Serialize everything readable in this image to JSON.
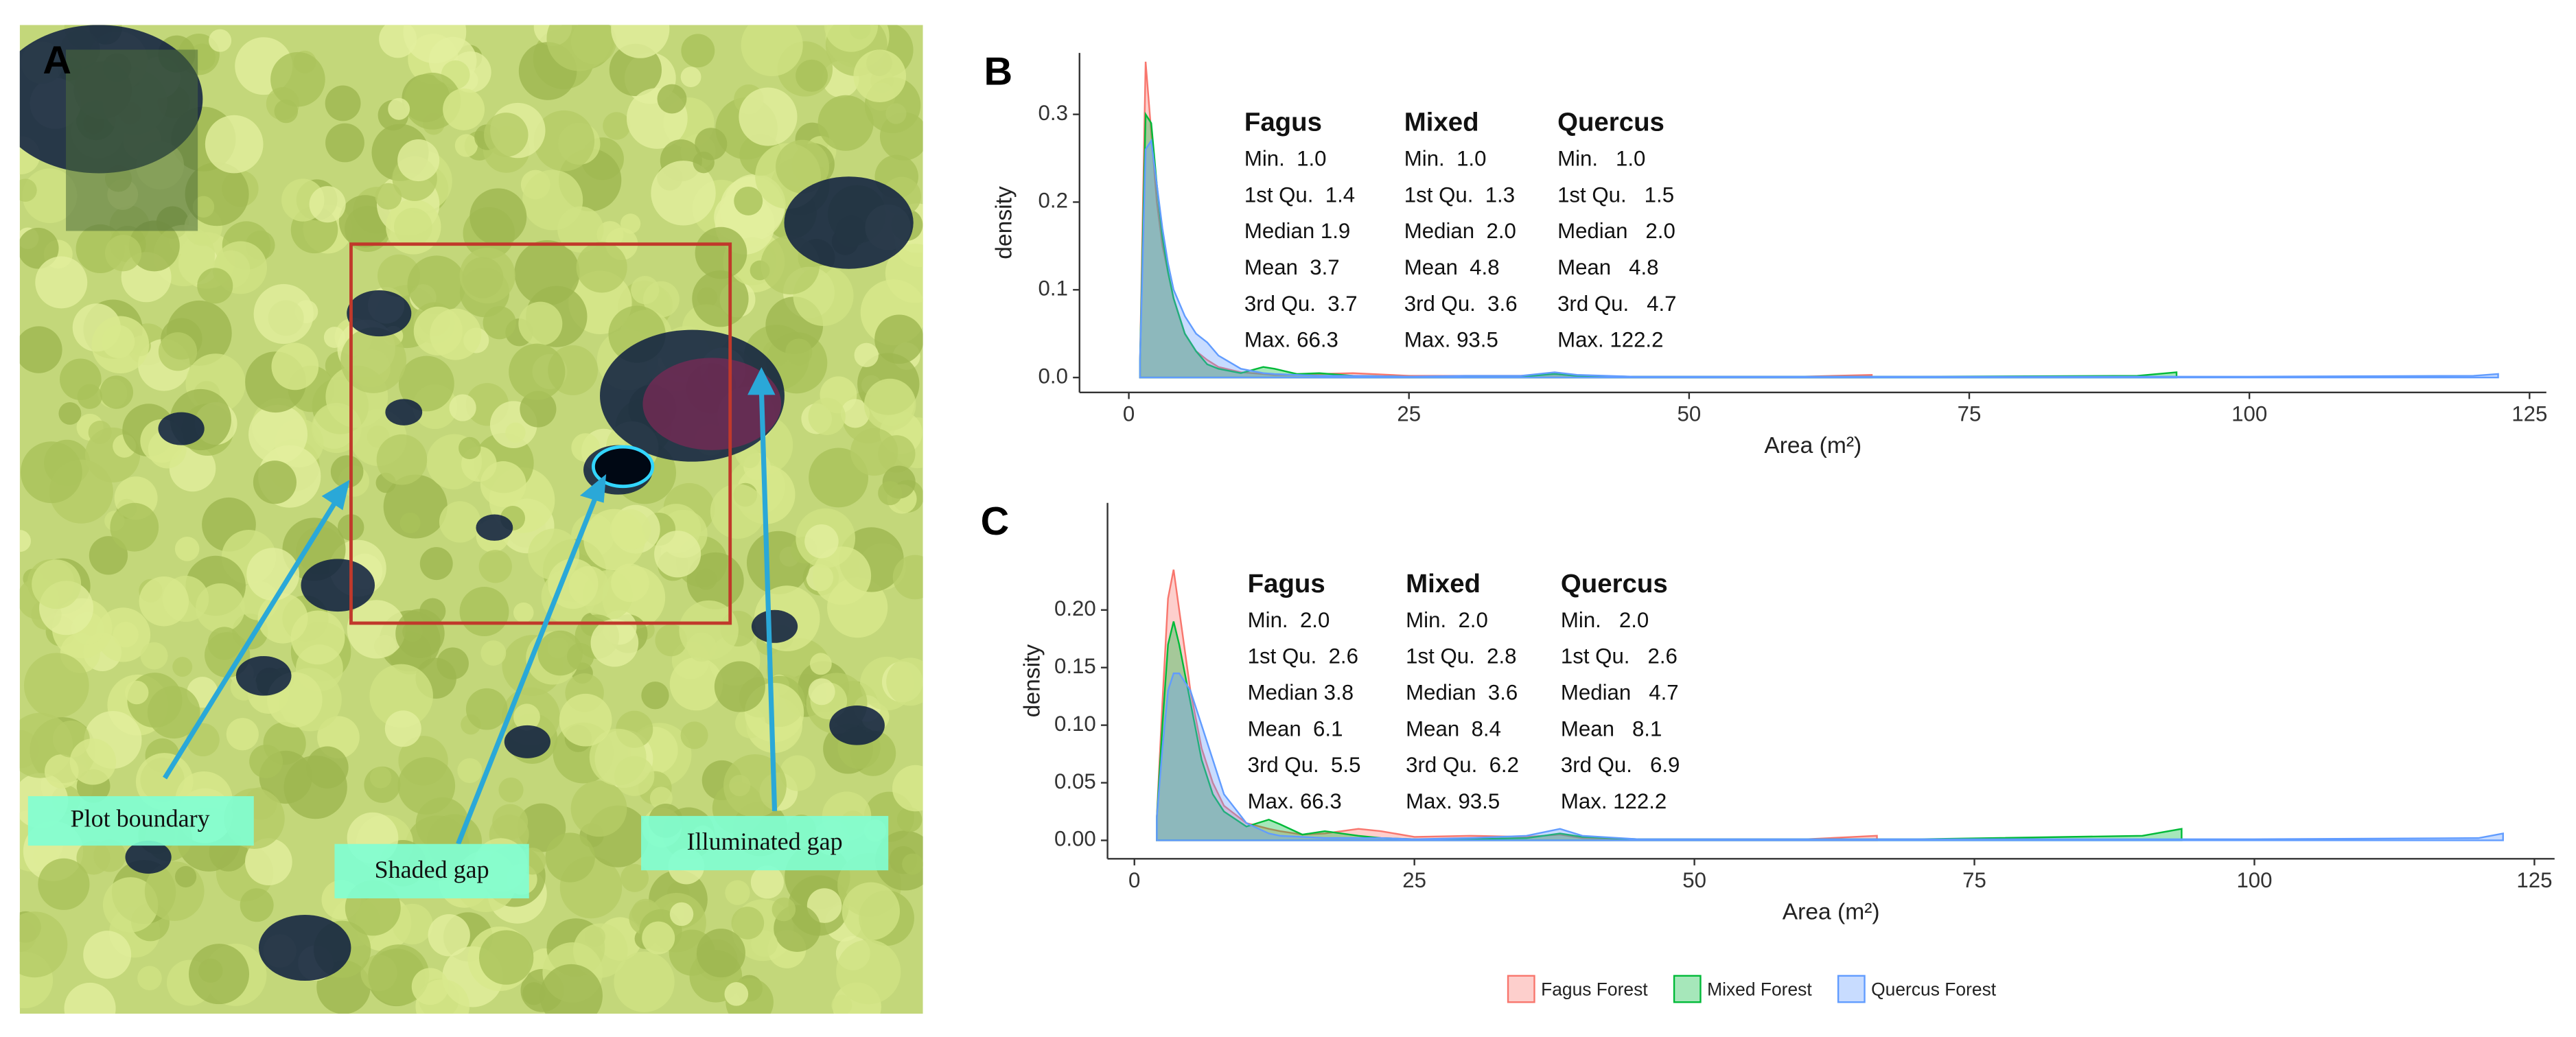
{
  "panel_a": {
    "label": "A",
    "annotations": [
      "Plot boundary",
      "Shaded gap",
      "Illuminated gap"
    ]
  },
  "legend_position": "bottom",
  "chart_data": [
    {
      "type": "area",
      "panel": "B",
      "xlabel": "Area (m²)",
      "ylabel": "density",
      "xlim": [
        -4.4,
        126.5
      ],
      "ylim": [
        -0.017,
        0.37
      ],
      "xticks": [
        0,
        25,
        50,
        75,
        100,
        125
      ],
      "yticks": [
        {
          "value": 0,
          "label": "0.0"
        },
        {
          "value": 0.1,
          "label": "0.1"
        },
        {
          "value": 0.2,
          "label": "0.2"
        },
        {
          "value": 0.3,
          "label": "0.3"
        }
      ],
      "x": [
        1,
        1.5,
        2,
        2.5,
        3,
        3.5,
        4,
        5,
        6,
        7,
        8,
        10,
        12,
        13,
        15,
        17,
        20,
        25,
        30,
        35,
        38,
        40,
        45,
        60,
        66.3,
        70,
        90,
        93.5,
        95,
        100,
        120,
        122.2
      ],
      "series": [
        {
          "name": "Fagus Forest",
          "color": "#f8766d",
          "values": [
            0.02,
            0.36,
            0.28,
            0.2,
            0.15,
            0.12,
            0.09,
            0.05,
            0.03,
            0.02,
            0.012,
            0.006,
            0.004,
            0.003,
            0.003,
            0.004,
            0.005,
            0.002,
            0.002,
            0.002,
            0.004,
            0.002,
            0.001,
            0.001,
            0.003,
            null,
            null,
            null,
            null,
            null,
            null,
            null
          ]
        },
        {
          "name": "Mixed Forest",
          "color": "#00ba38",
          "values": [
            0.02,
            0.3,
            0.29,
            0.22,
            0.16,
            0.12,
            0.09,
            0.05,
            0.03,
            0.015,
            0.01,
            0.005,
            0.012,
            0.01,
            0.004,
            0.005,
            0.002,
            0.001,
            0.001,
            0.001,
            0.004,
            0.002,
            0.001,
            0.001,
            0.001,
            0.001,
            0.002,
            0.006,
            null,
            null,
            null,
            null
          ]
        },
        {
          "name": "Quercus Forest",
          "color": "#619cff",
          "values": [
            0.02,
            0.26,
            0.27,
            0.22,
            0.17,
            0.13,
            0.1,
            0.07,
            0.05,
            0.04,
            0.025,
            0.01,
            0.005,
            0.004,
            0.003,
            0.002,
            0.002,
            0.001,
            0.002,
            0.002,
            0.006,
            0.003,
            0.001,
            0.001,
            0.001,
            0.001,
            0.001,
            0.001,
            0.001,
            0.001,
            0.002,
            0.004
          ]
        }
      ],
      "stats": [
        {
          "name": "Fagus",
          "rows": [
            "Min.  1.0",
            "1st Qu.  1.4",
            "Median 1.9",
            "Mean  3.7",
            "3rd Qu.  3.7",
            "Max. 66.3"
          ]
        },
        {
          "name": "Mixed",
          "rows": [
            "Min.  1.0",
            "1st Qu.  1.3",
            "Median  2.0",
            "Mean  4.8",
            "3rd Qu.  3.6",
            "Max. 93.5"
          ]
        },
        {
          "name": "Quercus",
          "rows": [
            "Min.   1.0",
            "1st Qu.   1.5",
            "Median   2.0",
            "Mean   4.8",
            "3rd Qu.   4.7",
            "Max. 122.2"
          ]
        }
      ]
    },
    {
      "type": "area",
      "panel": "C",
      "xlabel": "Area (m²)",
      "ylabel": "density",
      "xlim": [
        -2.4,
        126.8
      ],
      "ylim": [
        -0.016,
        0.293
      ],
      "xticks": [
        0,
        25,
        50,
        75,
        100,
        125
      ],
      "yticks": [
        {
          "value": 0,
          "label": "0.00"
        },
        {
          "value": 0.05,
          "label": "0.05"
        },
        {
          "value": 0.1,
          "label": "0.10"
        },
        {
          "value": 0.15,
          "label": "0.15"
        },
        {
          "value": 0.2,
          "label": "0.20"
        }
      ],
      "x": [
        2,
        2.5,
        3,
        3.5,
        4,
        5,
        6,
        7,
        8,
        10,
        12,
        13,
        15,
        17,
        20,
        22,
        25,
        30,
        35,
        38,
        40,
        45,
        60,
        66.3,
        70,
        90,
        93.5,
        95,
        100,
        120,
        122.2
      ],
      "series": [
        {
          "name": "Fagus Forest",
          "color": "#f8766d",
          "values": [
            0.02,
            0.12,
            0.21,
            0.235,
            0.2,
            0.13,
            0.08,
            0.05,
            0.03,
            0.015,
            0.01,
            0.008,
            0.005,
            0.006,
            0.01,
            0.008,
            0.003,
            0.004,
            0.003,
            0.005,
            0.002,
            0.001,
            0.001,
            0.004,
            null,
            null,
            null,
            null,
            null,
            null,
            null
          ]
        },
        {
          "name": "Mixed Forest",
          "color": "#00ba38",
          "values": [
            0.02,
            0.1,
            0.17,
            0.19,
            0.17,
            0.12,
            0.07,
            0.04,
            0.025,
            0.012,
            0.018,
            0.014,
            0.005,
            0.008,
            0.004,
            0.002,
            0.001,
            0.001,
            0.002,
            0.006,
            0.003,
            0.001,
            0.001,
            0.001,
            0.001,
            0.004,
            0.01,
            null,
            null,
            null,
            null
          ]
        },
        {
          "name": "Quercus Forest",
          "color": "#619cff",
          "values": [
            0.02,
            0.08,
            0.13,
            0.145,
            0.145,
            0.13,
            0.1,
            0.07,
            0.04,
            0.015,
            0.006,
            0.004,
            0.003,
            0.002,
            0.002,
            0.002,
            0.001,
            0.002,
            0.004,
            0.01,
            0.004,
            0.001,
            0.001,
            0.001,
            0.001,
            0.001,
            0.001,
            0.001,
            0.001,
            0.002,
            0.006
          ]
        }
      ],
      "stats": [
        {
          "name": "Fagus",
          "rows": [
            "Min.  2.0",
            "1st Qu.  2.6",
            "Median 3.8",
            "Mean  6.1",
            "3rd Qu.  5.5",
            "Max. 66.3"
          ]
        },
        {
          "name": "Mixed",
          "rows": [
            "Min.  2.0",
            "1st Qu.  2.8",
            "Median  3.6",
            "Mean  8.4",
            "3rd Qu.  6.2",
            "Max. 93.5"
          ]
        },
        {
          "name": "Quercus",
          "rows": [
            "Min.   2.0",
            "1st Qu.   2.6",
            "Median   4.7",
            "Mean   8.1",
            "3rd Qu.   6.9",
            "Max. 122.2"
          ]
        }
      ]
    }
  ]
}
